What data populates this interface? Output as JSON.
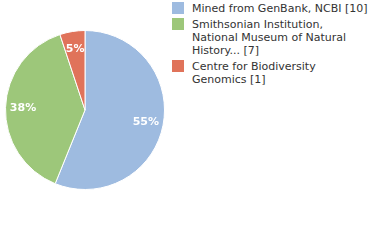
{
  "chart_data": {
    "type": "pie",
    "categories": [
      "Mined from GenBank, NCBI [10]",
      "Smithsonian Institution, National Museum of Natural History... [7]",
      "Centre for Biodiversity Genomics [1]"
    ],
    "values": [
      55,
      38,
      5
    ],
    "value_labels": [
      "55%",
      "38%",
      "5%"
    ],
    "colors": [
      "#9ebbe0",
      "#9dc77a",
      "#e0735a"
    ],
    "data_labels": true,
    "legend": "right"
  }
}
